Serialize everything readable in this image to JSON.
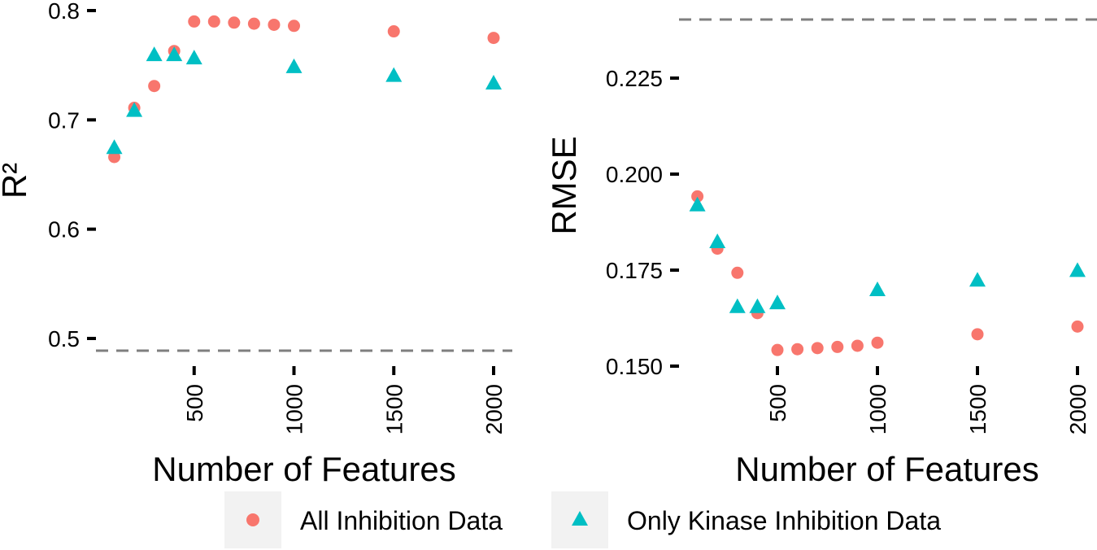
{
  "chart_data": [
    {
      "type": "scatter",
      "xlabel": "Number of Features",
      "ylabel": "R²",
      "xticks": [
        500,
        1000,
        1500,
        2000
      ],
      "yticks": [
        0.5,
        0.6,
        0.7,
        0.8
      ],
      "ytick_labels": [
        "0.5",
        "0.6",
        "0.7",
        "0.8"
      ],
      "xlim": [
        0,
        2100
      ],
      "ylim": [
        0.49,
        0.8
      ],
      "reference_line": 0.49,
      "series": [
        {
          "name": "All Inhibition Data",
          "marker": "circle",
          "color": "#F8766D",
          "x": [
            100,
            200,
            300,
            400,
            500,
            600,
            700,
            800,
            900,
            1000,
            1500,
            2000
          ],
          "y": [
            0.666,
            0.711,
            0.731,
            0.763,
            0.79,
            0.79,
            0.789,
            0.788,
            0.787,
            0.786,
            0.781,
            0.775
          ]
        },
        {
          "name": "Only Kinase Inhibition Data",
          "marker": "triangle",
          "color": "#00BFC4",
          "x": [
            100,
            200,
            300,
            400,
            500,
            1000,
            1500,
            2000
          ],
          "y": [
            0.674,
            0.708,
            0.759,
            0.759,
            0.756,
            0.748,
            0.74,
            0.733
          ]
        }
      ]
    },
    {
      "type": "scatter",
      "xlabel": "Number of Features",
      "ylabel": "RMSE",
      "xticks": [
        500,
        1000,
        1500,
        2000
      ],
      "yticks": [
        0.15,
        0.175,
        0.2,
        0.225
      ],
      "ytick_labels": [
        "0.150",
        "0.175",
        "0.200",
        "0.225"
      ],
      "xlim": [
        0,
        2100
      ],
      "ylim": [
        0.15,
        0.24
      ],
      "reference_line": 0.2405,
      "series": [
        {
          "name": "All Inhibition Data",
          "marker": "circle",
          "color": "#F8766D",
          "x": [
            100,
            200,
            300,
            400,
            500,
            600,
            700,
            800,
            900,
            1000,
            1500,
            2000
          ],
          "y": [
            0.1942,
            0.1806,
            0.1743,
            0.1638,
            0.1542,
            0.1544,
            0.1547,
            0.155,
            0.1553,
            0.1561,
            0.1583,
            0.1603
          ]
        },
        {
          "name": "Only Kinase Inhibition Data",
          "marker": "triangle",
          "color": "#00BFC4",
          "x": [
            100,
            200,
            300,
            400,
            500,
            1000,
            1500,
            2000
          ],
          "y": [
            0.1918,
            0.1822,
            0.1653,
            0.1653,
            0.1663,
            0.1697,
            0.1722,
            0.1747
          ]
        }
      ]
    }
  ],
  "legend": {
    "position": "bottom",
    "items": [
      {
        "label": "All Inhibition Data",
        "marker": "circle",
        "color": "#F8766D"
      },
      {
        "label": "Only Kinase Inhibition Data",
        "marker": "triangle",
        "color": "#00BFC4"
      }
    ]
  },
  "colors": {
    "reference_line": "#7F7F7F",
    "legend_key_background": "#F2F2F2",
    "axis_tick": "#000000"
  }
}
